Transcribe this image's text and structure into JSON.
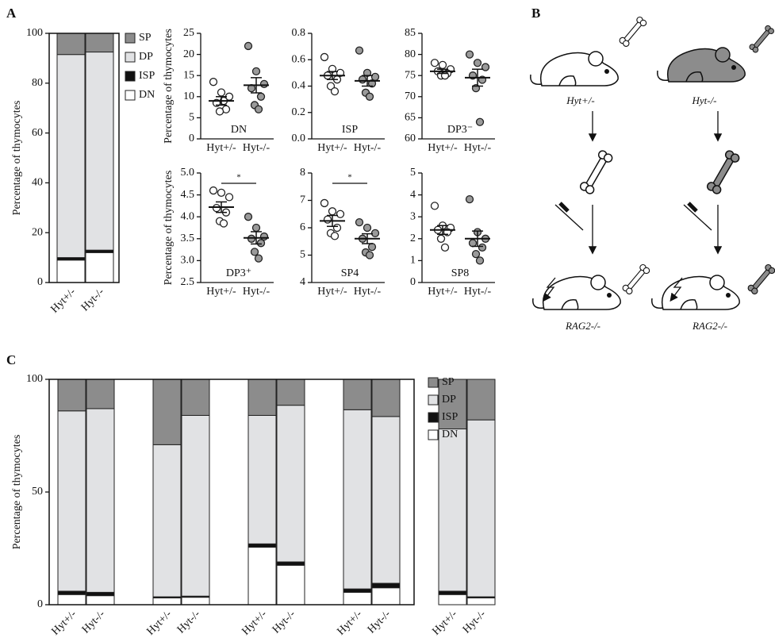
{
  "panel_labels": [
    "A",
    "B",
    "C"
  ],
  "diagram": {
    "labels": [
      "Hyt+/-",
      "Hyt-/-",
      "RAG2-/-",
      "RAG2-/-"
    ]
  },
  "chart_data": [
    {
      "type": "stacked_bar",
      "y_label": "Percentage of thymocytes",
      "categories": [
        "Hyt+/-",
        "Hyt-/-"
      ],
      "series": [
        {
          "name": "DN",
          "color": "#ffffff",
          "values": [
            9,
            12
          ]
        },
        {
          "name": "ISP",
          "color": "#111111",
          "values": [
            1,
            1
          ]
        },
        {
          "name": "DP",
          "color": "#e1e2e4",
          "values": [
            81.5,
            79.5
          ]
        },
        {
          "name": "SP",
          "color": "#8c8c8c",
          "values": [
            8.5,
            7.5
          ]
        }
      ],
      "ylim": [
        0,
        100
      ],
      "yticks": [
        0,
        20,
        40,
        60,
        80,
        100
      ]
    },
    {
      "type": "strip",
      "title": "DN",
      "y_label": "Percentage of thymocytes",
      "categories": [
        "Hyt+/-",
        "Hyt-/-"
      ],
      "series": [
        {
          "color": "#ffffff",
          "values": [
            13.5,
            11,
            10,
            8.5,
            7,
            6.5,
            9
          ],
          "mean": 9,
          "sem": 1
        },
        {
          "color": "#9a9a9a",
          "values": [
            22,
            16,
            13,
            12,
            10,
            8,
            7
          ],
          "mean": 12.7,
          "sem": 1.8
        }
      ],
      "ylim": [
        0,
        25
      ],
      "yticks": [
        0,
        5,
        10,
        15,
        20,
        25
      ]
    },
    {
      "type": "strip",
      "title": "ISP",
      "categories": [
        "Hyt+/-",
        "Hyt-/-"
      ],
      "series": [
        {
          "color": "#ffffff",
          "values": [
            0.62,
            0.53,
            0.5,
            0.48,
            0.45,
            0.4,
            0.36
          ],
          "mean": 0.48,
          "sem": 0.03
        },
        {
          "color": "#9a9a9a",
          "values": [
            0.67,
            0.5,
            0.47,
            0.45,
            0.42,
            0.35,
            0.32
          ],
          "mean": 0.44,
          "sem": 0.04
        }
      ],
      "ylim": [
        0,
        0.8
      ],
      "yticks": [
        {
          "value": 0,
          "label": "0.0"
        },
        0.2,
        0.4,
        0.6,
        0.8
      ]
    },
    {
      "type": "strip",
      "title": "DP3⁻",
      "categories": [
        "Hyt+/-",
        "Hyt-/-"
      ],
      "series": [
        {
          "color": "#ffffff",
          "values": [
            78,
            77.5,
            76.5,
            76,
            75.5,
            75,
            75
          ],
          "mean": 76,
          "sem": 0.5
        },
        {
          "color": "#9a9a9a",
          "values": [
            80,
            78,
            77,
            75,
            74,
            72,
            64
          ],
          "mean": 74.5,
          "sem": 2
        }
      ],
      "ylim": [
        60,
        85
      ],
      "yticks": [
        60,
        65,
        70,
        75,
        80,
        85
      ]
    },
    {
      "type": "strip",
      "title": "DP3⁺",
      "y_label": "Percentage of thymocytes",
      "annotation": "*",
      "categories": [
        "Hyt+/-",
        "Hyt-/-"
      ],
      "series": [
        {
          "color": "#ffffff",
          "values": [
            4.6,
            4.55,
            4.45,
            4.2,
            4.1,
            3.9,
            3.85
          ],
          "mean": 4.22,
          "sem": 0.12
        },
        {
          "color": "#9a9a9a",
          "values": [
            4.0,
            3.75,
            3.55,
            3.5,
            3.4,
            3.2,
            3.05
          ],
          "mean": 3.52,
          "sem": 0.14
        }
      ],
      "ylim": [
        2.5,
        5
      ],
      "yticks": [
        2.5,
        {
          "value": 3,
          "label": "3.0"
        },
        3.5,
        {
          "value": 4,
          "label": "4.0"
        },
        4.5,
        {
          "value": 5,
          "label": "5.0"
        }
      ]
    },
    {
      "type": "strip",
      "title": "SP4",
      "annotation": "*",
      "categories": [
        "Hyt+/-",
        "Hyt-/-"
      ],
      "series": [
        {
          "color": "#ffffff",
          "values": [
            6.9,
            6.6,
            6.5,
            6.3,
            6.0,
            5.8,
            5.7
          ],
          "mean": 6.25,
          "sem": 0.2
        },
        {
          "color": "#9a9a9a",
          "values": [
            6.2,
            6.0,
            5.8,
            5.6,
            5.3,
            5.1,
            5.0
          ],
          "mean": 5.6,
          "sem": 0.18
        }
      ],
      "ylim": [
        4,
        8
      ],
      "yticks": [
        4,
        5,
        6,
        7,
        8
      ]
    },
    {
      "type": "strip",
      "title": "SP8",
      "categories": [
        "Hyt+/-",
        "Hyt-/-"
      ],
      "series": [
        {
          "color": "#ffffff",
          "values": [
            3.5,
            2.6,
            2.5,
            2.4,
            2.3,
            2.0,
            1.6
          ],
          "mean": 2.4,
          "sem": 0.2
        },
        {
          "color": "#9a9a9a",
          "values": [
            3.8,
            2.3,
            2.0,
            1.8,
            1.6,
            1.3,
            1.0
          ],
          "mean": 2.0,
          "sem": 0.35
        }
      ],
      "ylim": [
        0,
        5
      ],
      "yticks": [
        0,
        1,
        2,
        3,
        4,
        5
      ]
    },
    {
      "type": "stacked_bar",
      "y_label": "Percentage of thymocytes",
      "categories": [
        "Hyt+/-",
        "Hyt-/-",
        "Hyt+/-",
        "Hyt-/-",
        "Hyt+/-",
        "Hyt-/-",
        "Hyt+/-",
        "Hyt-/-",
        "Hyt+/-",
        "Hyt-/-"
      ],
      "series": [
        {
          "name": "DN",
          "color": "#ffffff",
          "values": [
            4.5,
            4,
            3,
            3.3,
            25.5,
            17.5,
            5.5,
            7.5,
            4.5,
            3
          ]
        },
        {
          "name": "ISP",
          "color": "#111111",
          "values": [
            1.5,
            1.5,
            0.5,
            0.5,
            1.5,
            1.5,
            1.5,
            2,
            1.5,
            0.5
          ]
        },
        {
          "name": "DP",
          "color": "#e1e2e4",
          "values": [
            80,
            81.5,
            67.5,
            80.2,
            57,
            69.5,
            79.5,
            74,
            72,
            78.5
          ]
        },
        {
          "name": "SP",
          "color": "#8c8c8c",
          "values": [
            14,
            13,
            29,
            16,
            16,
            11.5,
            13.5,
            16.5,
            22,
            18
          ]
        }
      ],
      "ylim": [
        0,
        100
      ],
      "yticks": [
        0,
        50,
        100
      ]
    }
  ]
}
